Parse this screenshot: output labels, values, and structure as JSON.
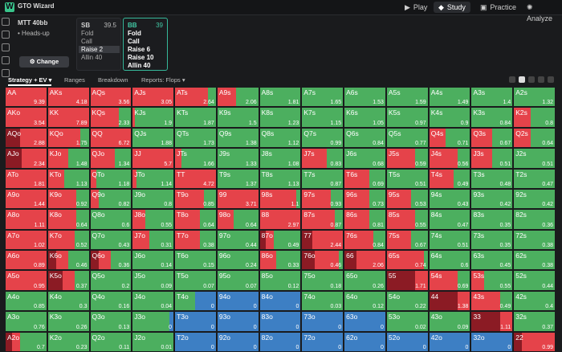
{
  "app": {
    "brand": "GTO Wizard",
    "nav": [
      {
        "label": "Play",
        "icon": "play-icon"
      },
      {
        "label": "Study",
        "icon": "study-icon",
        "active": true
      },
      {
        "label": "Practice",
        "icon": "practice-icon"
      },
      {
        "label": "Analyze",
        "icon": "analyze-icon"
      }
    ]
  },
  "game": {
    "format": "MTT 40bb",
    "mode": "Heads-up",
    "change_label": "Change"
  },
  "sb": {
    "name": "SB",
    "stack": "39.5",
    "actions": [
      "Fold",
      "Call",
      "Raise 2",
      "Allin 40"
    ]
  },
  "bb": {
    "name": "BB",
    "stack": "39",
    "actions": [
      "Fold",
      "Call",
      "Raise 6",
      "Raise 10",
      "Allin 40"
    ]
  },
  "tabs": [
    "Strategy + EV",
    "Ranges",
    "Breakdown",
    "Reports: Flops"
  ],
  "colors": {
    "raise": "#e5434a",
    "call": "#4caf5f",
    "fold": "#3d7fc4",
    "allin": "#8b1b24"
  },
  "grid": [
    [
      [
        "AA",
        9.39,
        0,
        0,
        1,
        0
      ],
      [
        "AKs",
        4.18,
        0,
        0,
        1,
        0
      ],
      [
        "AQs",
        3.56,
        0,
        0,
        1,
        0
      ],
      [
        "AJs",
        3.05,
        0,
        0,
        1,
        0
      ],
      [
        "ATs",
        2.64,
        0,
        0.2,
        0.8,
        0
      ],
      [
        "A9s",
        2.06,
        0,
        0.55,
        0.45,
        0
      ],
      [
        "A8s",
        1.81,
        0,
        1,
        0,
        0
      ],
      [
        "A7s",
        1.65,
        0,
        1,
        0,
        0
      ],
      [
        "A6s",
        1.53,
        0,
        1,
        0,
        0
      ],
      [
        "A5s",
        1.59,
        0,
        1,
        0,
        0
      ],
      [
        "A4s",
        1.49,
        0,
        1,
        0,
        0
      ],
      [
        "A3s",
        1.4,
        0,
        1,
        0,
        0
      ],
      [
        "A2s",
        1.32,
        0,
        1,
        0,
        0
      ]
    ],
    [
      [
        "AKo",
        3.54,
        0,
        0,
        1,
        0
      ],
      [
        "KK",
        7.89,
        0,
        0,
        1,
        0
      ],
      [
        "KQs",
        2.33,
        0,
        0.3,
        0.7,
        0
      ],
      [
        "KJs",
        1.9,
        0,
        0.95,
        0.05,
        0
      ],
      [
        "KTs",
        1.87,
        0,
        1,
        0,
        0
      ],
      [
        "K9s",
        1.5,
        0,
        1,
        0,
        0
      ],
      [
        "K8s",
        1.23,
        0,
        1,
        0,
        0
      ],
      [
        "K7s",
        1.15,
        0,
        1,
        0,
        0
      ],
      [
        "K6s",
        1.05,
        0,
        1,
        0,
        0
      ],
      [
        "K5s",
        0.97,
        0,
        1,
        0,
        0
      ],
      [
        "K4s",
        0.9,
        0,
        1,
        0,
        0
      ],
      [
        "K3s",
        0.84,
        0,
        1,
        0,
        0
      ],
      [
        "K2s",
        0.8,
        0,
        0.6,
        0.4,
        0
      ]
    ],
    [
      [
        "AQo",
        2.88,
        0,
        0,
        0.65,
        0.35
      ],
      [
        "KQo",
        1.75,
        0,
        0.2,
        0.8,
        0
      ],
      [
        "QQ",
        6.72,
        0,
        0,
        1,
        0
      ],
      [
        "QJs",
        1.88,
        0,
        1,
        0,
        0
      ],
      [
        "QTs",
        1.73,
        0,
        1,
        0,
        0
      ],
      [
        "Q9s",
        1.38,
        0,
        1,
        0,
        0
      ],
      [
        "Q8s",
        1.12,
        0,
        1,
        0,
        0
      ],
      [
        "Q7s",
        0.99,
        0,
        1,
        0,
        0
      ],
      [
        "Q6s",
        0.84,
        0,
        1,
        0,
        0
      ],
      [
        "Q5s",
        0.77,
        0,
        1,
        0,
        0
      ],
      [
        "Q4s",
        0.71,
        0,
        0.6,
        0.4,
        0
      ],
      [
        "Q3s",
        0.67,
        0,
        0.5,
        0.5,
        0
      ],
      [
        "Q2s",
        0.64,
        0,
        0.6,
        0.4,
        0
      ]
    ],
    [
      [
        "AJo",
        2.34,
        0,
        0,
        0.6,
        0.4
      ],
      [
        "KJo",
        1.48,
        0,
        0.5,
        0.5,
        0
      ],
      [
        "QJo",
        1.34,
        0,
        0.4,
        0.6,
        0
      ],
      [
        "JJ",
        5.7,
        0,
        0,
        1,
        0
      ],
      [
        "JTs",
        1.66,
        0,
        0.85,
        0.15,
        0
      ],
      [
        "J9s",
        1.33,
        0,
        1,
        0,
        0
      ],
      [
        "J8s",
        1.08,
        0,
        1,
        0,
        0
      ],
      [
        "J7s",
        0.83,
        0,
        0.4,
        0.6,
        0
      ],
      [
        "J6s",
        0.68,
        0,
        1,
        0,
        0
      ],
      [
        "J5s",
        0.59,
        0,
        0.3,
        0.7,
        0
      ],
      [
        "J4s",
        0.56,
        0,
        0.3,
        0.7,
        0
      ],
      [
        "J3s",
        0.51,
        0,
        0.5,
        0.5,
        0
      ],
      [
        "J2s",
        0.51,
        0,
        1,
        0,
        0
      ]
    ],
    [
      [
        "ATo",
        1.81,
        0,
        0,
        1,
        0
      ],
      [
        "KTo",
        1.13,
        0,
        0.6,
        0.4,
        0
      ],
      [
        "QTo",
        1.18,
        0,
        0.85,
        0.15,
        0
      ],
      [
        "JTo",
        1.14,
        0,
        0.9,
        0.1,
        0
      ],
      [
        "TT",
        4.72,
        0,
        0,
        1,
        0
      ],
      [
        "T9s",
        1.37,
        0,
        1,
        0,
        0
      ],
      [
        "T8s",
        1.13,
        0,
        1,
        0,
        0
      ],
      [
        "T7s",
        0.87,
        0,
        1,
        0,
        0
      ],
      [
        "T6s",
        0.69,
        0,
        0.4,
        0.6,
        0
      ],
      [
        "T5s",
        0.51,
        0,
        1,
        0,
        0
      ],
      [
        "T4s",
        0.49,
        0,
        0.4,
        0.6,
        0
      ],
      [
        "T3s",
        0.48,
        0,
        1,
        0,
        0
      ],
      [
        "T2s",
        0.47,
        0,
        1,
        0,
        0
      ]
    ],
    [
      [
        "A9o",
        1.44,
        0,
        0,
        1,
        0
      ],
      [
        "K9o",
        0.92,
        0,
        0.3,
        0.7,
        0
      ],
      [
        "Q9o",
        0.82,
        0,
        0.8,
        0.2,
        0
      ],
      [
        "J9o",
        0.8,
        0,
        1,
        0,
        0
      ],
      [
        "T9o",
        0.85,
        0,
        0.3,
        0.7,
        0
      ],
      [
        "99",
        3.71,
        0,
        0,
        1,
        0
      ],
      [
        "98s",
        1.1,
        0,
        0.1,
        0.9,
        0
      ],
      [
        "97s",
        0.93,
        0,
        0.3,
        0.7,
        0
      ],
      [
        "96s",
        0.73,
        0,
        0.4,
        0.6,
        0
      ],
      [
        "95s",
        0.53,
        0,
        0.4,
        0.6,
        0
      ],
      [
        "94s",
        0.43,
        0,
        1,
        0,
        0
      ],
      [
        "93s",
        0.42,
        0,
        1,
        0,
        0
      ],
      [
        "92s",
        0.42,
        0,
        1,
        0,
        0
      ]
    ],
    [
      [
        "A8o",
        1.11,
        0,
        0,
        1,
        0
      ],
      [
        "K8o",
        0.64,
        0,
        0.3,
        0.7,
        0
      ],
      [
        "Q8o",
        0.6,
        0,
        1,
        0,
        0
      ],
      [
        "J8o",
        0.55,
        0,
        0.7,
        0.3,
        0
      ],
      [
        "T8o",
        0.64,
        0,
        0.4,
        0.6,
        0
      ],
      [
        "98o",
        0.64,
        0,
        0.6,
        0.4,
        0
      ],
      [
        "88",
        2.97,
        0,
        0,
        1,
        0
      ],
      [
        "87s",
        0.87,
        0,
        0.2,
        0.8,
        0
      ],
      [
        "86s",
        0.81,
        0,
        0.4,
        0.6,
        0
      ],
      [
        "85s",
        0.55,
        0,
        0.3,
        0.7,
        0
      ],
      [
        "84s",
        0.47,
        0,
        1,
        0,
        0
      ],
      [
        "83s",
        0.35,
        0,
        1,
        0,
        0
      ],
      [
        "82s",
        0.36,
        0,
        1,
        0,
        0
      ]
    ],
    [
      [
        "A7o",
        1.02,
        0,
        0,
        1,
        0
      ],
      [
        "K7o",
        0.52,
        0,
        0.35,
        0.65,
        0
      ],
      [
        "Q7o",
        0.43,
        0,
        1,
        0,
        0
      ],
      [
        "J7o",
        0.31,
        0,
        0.6,
        0.4,
        0
      ],
      [
        "T7o",
        0.38,
        0,
        0.4,
        0.6,
        0
      ],
      [
        "97o",
        0.44,
        0,
        1,
        0,
        0
      ],
      [
        "87o",
        0.49,
        0,
        0.65,
        0.2,
        0.15
      ],
      [
        "77",
        2.44,
        0,
        0,
        0.75,
        0.25
      ],
      [
        "76s",
        0.84,
        0,
        0.3,
        0.7,
        0
      ],
      [
        "75s",
        0.67,
        0,
        0.4,
        0.6,
        0
      ],
      [
        "74s",
        0.51,
        0,
        1,
        0,
        0
      ],
      [
        "73s",
        0.35,
        0,
        1,
        0,
        0
      ],
      [
        "72s",
        0.38,
        0,
        1,
        0,
        0
      ]
    ],
    [
      [
        "A6o",
        0.89,
        0,
        0,
        1,
        0
      ],
      [
        "K6o",
        0.46,
        0,
        0.5,
        0.3,
        0.2
      ],
      [
        "Q6o",
        0.36,
        0,
        0.5,
        0.3,
        0.2
      ],
      [
        "J6o",
        0.14,
        0,
        1,
        0,
        0
      ],
      [
        "T6o",
        0.15,
        0,
        1,
        0,
        0
      ],
      [
        "96o",
        0.24,
        0,
        1,
        0,
        0
      ],
      [
        "86o",
        0.33,
        0,
        0.6,
        0.4,
        0
      ],
      [
        "76o",
        0.46,
        0,
        0.1,
        0.6,
        0.3
      ],
      [
        "66",
        2.06,
        0,
        0,
        0.7,
        0.3
      ],
      [
        "65s",
        0.74,
        0,
        0.1,
        0.9,
        0
      ],
      [
        "64s",
        0.6,
        0,
        1,
        0,
        0
      ],
      [
        "63s",
        0.45,
        0,
        1,
        0,
        0
      ],
      [
        "62s",
        0.38,
        0,
        1,
        0,
        0
      ]
    ],
    [
      [
        "A5o",
        0.95,
        0,
        0,
        1,
        0
      ],
      [
        "K5o",
        0.37,
        0,
        0.35,
        0.3,
        0.35
      ],
      [
        "Q5o",
        0.2,
        0,
        1,
        0,
        0
      ],
      [
        "J5o",
        0.09,
        0,
        1,
        0,
        0
      ],
      [
        "T5o",
        0.07,
        0,
        1,
        0,
        0
      ],
      [
        "95o",
        0.07,
        0,
        1,
        0,
        0
      ],
      [
        "85o",
        0.12,
        0,
        1,
        0,
        0
      ],
      [
        "75o",
        0.18,
        0,
        1,
        0,
        0
      ],
      [
        "65o",
        0.26,
        0,
        1,
        0,
        0
      ],
      [
        "55",
        1.71,
        0,
        0,
        0.3,
        0.7
      ],
      [
        "54s",
        0.69,
        0,
        0.3,
        0.7,
        0
      ],
      [
        "53s",
        0.55,
        0,
        0.7,
        0.3,
        0
      ],
      [
        "52s",
        0.44,
        0,
        1,
        0,
        0
      ]
    ],
    [
      [
        "A4o",
        0.85,
        0,
        1,
        0,
        0
      ],
      [
        "K4o",
        0.3,
        0,
        1,
        0,
        0
      ],
      [
        "Q4o",
        0.16,
        0,
        1,
        0,
        0
      ],
      [
        "J4o",
        0.04,
        0,
        1,
        0,
        0
      ],
      [
        "T4o",
        0,
        0.5,
        0.5,
        0,
        0
      ],
      [
        "94o",
        0,
        1,
        0,
        0,
        0
      ],
      [
        "84o",
        0,
        1,
        0,
        0,
        0
      ],
      [
        "74o",
        0.03,
        0,
        1,
        0,
        0
      ],
      [
        "64o",
        0.12,
        0,
        1,
        0,
        0
      ],
      [
        "54o",
        0.22,
        0,
        1,
        0,
        0
      ],
      [
        "44",
        1.38,
        0,
        0,
        0.3,
        0.7
      ],
      [
        "43s",
        0.49,
        0,
        0.3,
        0.7,
        0
      ],
      [
        "42s",
        0.4,
        0,
        1,
        0,
        0
      ]
    ],
    [
      [
        "A3o",
        0.76,
        0,
        1,
        0,
        0
      ],
      [
        "K3o",
        0.26,
        0,
        1,
        0,
        0
      ],
      [
        "Q3o",
        0.13,
        0,
        1,
        0,
        0
      ],
      [
        "J3o",
        0,
        0.1,
        0.9,
        0,
        0
      ],
      [
        "T3o",
        0,
        1,
        0,
        0,
        0
      ],
      [
        "93o",
        0,
        1,
        0,
        0,
        0
      ],
      [
        "83o",
        0,
        1,
        0,
        0,
        0
      ],
      [
        "73o",
        0,
        1,
        0,
        0,
        0
      ],
      [
        "63o",
        0,
        1,
        0,
        0,
        0
      ],
      [
        "53o",
        0.02,
        0,
        1,
        0,
        0
      ],
      [
        "43o",
        0.09,
        0,
        1,
        0,
        0
      ],
      [
        "33",
        1.11,
        0,
        0,
        0.3,
        0.7
      ],
      [
        "32s",
        0.37,
        0,
        1,
        0,
        0
      ]
    ],
    [
      [
        "A2o",
        0.7,
        0,
        0.65,
        0.2,
        0.15
      ],
      [
        "K2o",
        0.23,
        0,
        1,
        0,
        0
      ],
      [
        "Q2o",
        0.11,
        0,
        1,
        0,
        0
      ],
      [
        "J2o",
        0.01,
        0,
        1,
        0,
        0
      ],
      [
        "T2o",
        0,
        1,
        0,
        0,
        0
      ],
      [
        "92o",
        0,
        1,
        0,
        0,
        0
      ],
      [
        "82o",
        0,
        1,
        0,
        0,
        0
      ],
      [
        "72o",
        0,
        1,
        0,
        0,
        0
      ],
      [
        "62o",
        0,
        1,
        0,
        0,
        0
      ],
      [
        "52o",
        0,
        1,
        0,
        0,
        0
      ],
      [
        "42o",
        0,
        1,
        0,
        0,
        0
      ],
      [
        "32o",
        0,
        1,
        0,
        0,
        0
      ],
      [
        "22",
        0.99,
        0,
        0,
        0.8,
        0.2
      ]
    ]
  ]
}
